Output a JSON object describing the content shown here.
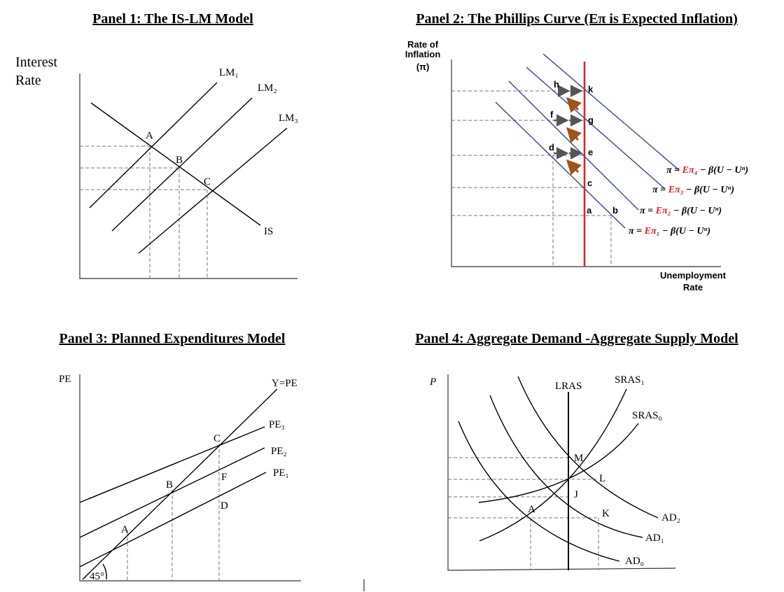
{
  "panels": [
    {
      "title": "Panel 1: The IS-LM Model",
      "axis_label": [
        "Interest",
        "Rate"
      ],
      "curves": [
        "LM₁",
        "LM₂",
        "LM₃",
        "IS"
      ],
      "points": [
        "A",
        "B",
        "C"
      ]
    },
    {
      "title": "Panel 2: The Phillips Curve (Eπ is Expected Inflation)",
      "axis_label": [
        "Rate of",
        "Inflation",
        "(π)"
      ],
      "x_axis_label": [
        "Unemployment",
        "Rate"
      ],
      "points": [
        "a",
        "b",
        "c",
        "d",
        "e",
        "f",
        "g",
        "h",
        "k"
      ],
      "equations": [
        {
          "prefix": "π = ",
          "expected": "Eπ₄",
          "suffix": " − β(U − Uⁿ)"
        },
        {
          "prefix": "π = ",
          "expected": "Eπ₃",
          "suffix": " − β(U − Uⁿ)"
        },
        {
          "prefix": "π = ",
          "expected": "Eπ₂",
          "suffix": " − β(U − Uⁿ)"
        },
        {
          "prefix": "π = ",
          "expected": "Eπ₁",
          "suffix": " − β(U − Uⁿ)"
        }
      ]
    },
    {
      "title": "Panel 3: Planned Expenditures Model",
      "axis_label": "PE",
      "curves": [
        "Y=PE",
        "PE₃",
        "PE₂",
        "PE₁"
      ],
      "points": [
        "A",
        "B",
        "C",
        "D",
        "F"
      ],
      "angle": "45°"
    },
    {
      "title": "Panel 4: Aggregate Demand -Aggregate Supply Model",
      "axis_label": "P",
      "curves": [
        "LRAS",
        "SRAS₁",
        "SRAS₀",
        "AD₂",
        "AD₁",
        "AD₀"
      ],
      "points": [
        "M",
        "L",
        "J",
        "A",
        "K"
      ]
    }
  ]
}
